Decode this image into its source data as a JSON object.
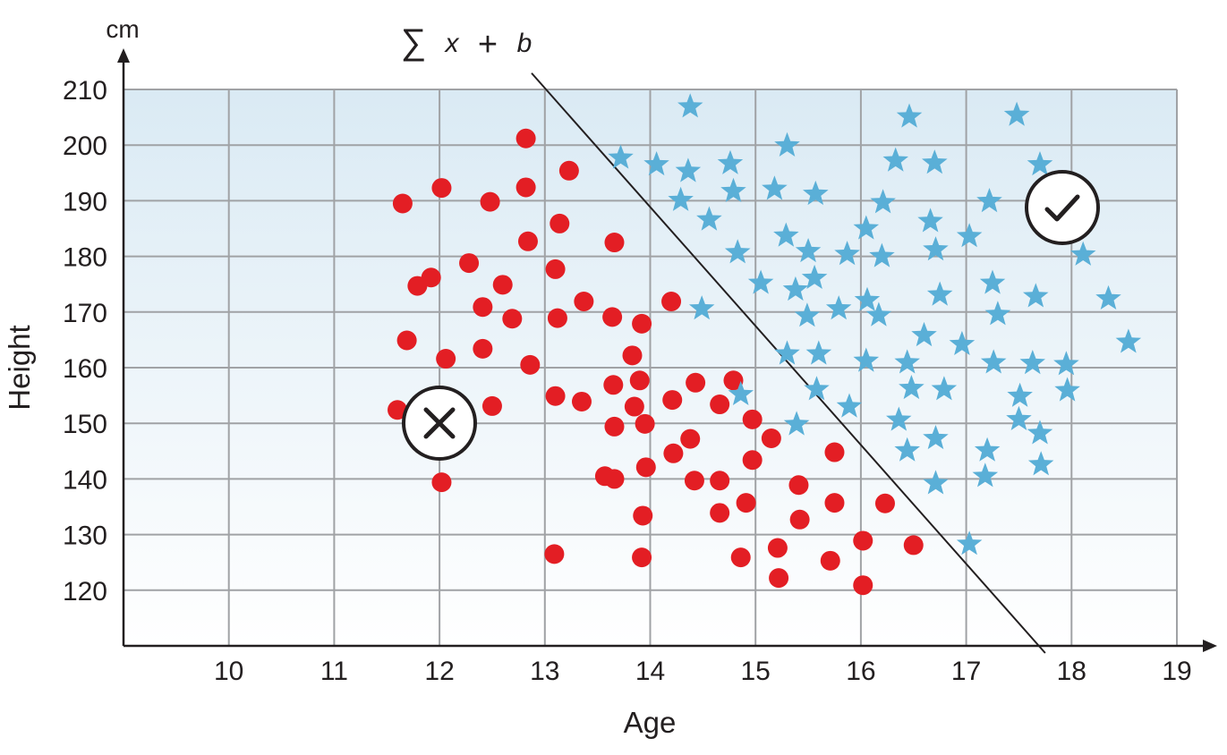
{
  "chart_data": {
    "type": "scatter",
    "title": "",
    "xlabel": "Age",
    "ylabel": "Height",
    "y_unit": "cm",
    "xlim": [
      9,
      19
    ],
    "ylim": [
      110,
      210
    ],
    "x_ticks": [
      10,
      11,
      12,
      13,
      14,
      15,
      16,
      17,
      18,
      19
    ],
    "y_ticks": [
      120,
      130,
      140,
      150,
      160,
      170,
      180,
      190,
      200,
      210
    ],
    "grid": true,
    "boundary_label": {
      "sum": "∑",
      "x": "x",
      "plus": "+",
      "b": "b"
    },
    "boundary_line": [
      [
        13.35,
        206.5
      ],
      [
        17.75,
        110
      ]
    ],
    "class_icons": {
      "negative": "cross-icon",
      "positive": "check-icon"
    },
    "series": [
      {
        "marker": "circle",
        "color": "#e31e24",
        "points": [
          [
            11.65,
            189.5
          ],
          [
            12.02,
            192.3
          ],
          [
            12.48,
            189.8
          ],
          [
            12.82,
            201.2
          ],
          [
            12.82,
            192.4
          ],
          [
            13.23,
            195.4
          ],
          [
            12.28,
            178.8
          ],
          [
            12.84,
            182.7
          ],
          [
            13.14,
            185.9
          ],
          [
            13.66,
            182.5
          ],
          [
            11.79,
            174.7
          ],
          [
            11.92,
            176.2
          ],
          [
            12.41,
            170.9
          ],
          [
            12.6,
            174.9
          ],
          [
            12.69,
            168.8
          ],
          [
            13.1,
            177.7
          ],
          [
            13.12,
            168.9
          ],
          [
            13.37,
            171.9
          ],
          [
            13.64,
            169.1
          ],
          [
            13.92,
            167.9
          ],
          [
            14.2,
            171.9
          ],
          [
            11.69,
            164.9
          ],
          [
            12.06,
            161.6
          ],
          [
            12.41,
            163.4
          ],
          [
            12.86,
            160.5
          ],
          [
            13.83,
            162.2
          ],
          [
            11.6,
            152.4
          ],
          [
            12.5,
            153.1
          ],
          [
            13.1,
            154.9
          ],
          [
            13.35,
            153.9
          ],
          [
            13.65,
            156.9
          ],
          [
            13.9,
            157.7
          ],
          [
            13.85,
            153
          ],
          [
            13.66,
            149.4
          ],
          [
            13.95,
            149.9
          ],
          [
            14.21,
            154.2
          ],
          [
            14.43,
            157.3
          ],
          [
            14.66,
            153.4
          ],
          [
            14.79,
            157.7
          ],
          [
            14.97,
            150.7
          ],
          [
            12.02,
            139.4
          ],
          [
            13.57,
            140.5
          ],
          [
            13.66,
            140
          ],
          [
            13.96,
            142.1
          ],
          [
            14.22,
            144.6
          ],
          [
            14.38,
            147.2
          ],
          [
            14.42,
            139.7
          ],
          [
            14.66,
            139.7
          ],
          [
            14.97,
            143.4
          ],
          [
            15.15,
            147.3
          ],
          [
            15.75,
            144.8
          ],
          [
            13.09,
            126.5
          ],
          [
            13.93,
            133.4
          ],
          [
            13.92,
            125.9
          ],
          [
            14.66,
            133.9
          ],
          [
            14.91,
            135.7
          ],
          [
            14.86,
            125.9
          ],
          [
            15.21,
            127.6
          ],
          [
            15.22,
            122.2
          ],
          [
            15.41,
            138.9
          ],
          [
            15.42,
            132.7
          ],
          [
            15.71,
            125.3
          ],
          [
            15.75,
            135.7
          ],
          [
            16.02,
            128.9
          ],
          [
            16.02,
            120.9
          ],
          [
            16.23,
            135.6
          ],
          [
            16.5,
            128.1
          ]
        ]
      },
      {
        "marker": "star",
        "color": "#5aafd7",
        "points": [
          [
            14.38,
            206.9
          ],
          [
            16.46,
            205.1
          ],
          [
            17.48,
            205.4
          ],
          [
            13.72,
            197.7
          ],
          [
            14.06,
            196.5
          ],
          [
            14.36,
            195.3
          ],
          [
            14.76,
            196.7
          ],
          [
            15.3,
            199.9
          ],
          [
            16.33,
            197.2
          ],
          [
            16.7,
            196.8
          ],
          [
            17.7,
            196.5
          ],
          [
            14.29,
            190.1
          ],
          [
            14.79,
            191.7
          ],
          [
            15.18,
            192.1
          ],
          [
            15.57,
            191.2
          ],
          [
            16.21,
            189.7
          ],
          [
            17.22,
            189.9
          ],
          [
            14.56,
            186.6
          ],
          [
            14.83,
            180.7
          ],
          [
            15.29,
            183.7
          ],
          [
            15.5,
            180.9
          ],
          [
            15.87,
            180.4
          ],
          [
            16.05,
            185
          ],
          [
            16.2,
            180
          ],
          [
            16.66,
            186.3
          ],
          [
            16.71,
            181.2
          ],
          [
            17.03,
            183.6
          ],
          [
            18.11,
            180.3
          ],
          [
            14.49,
            170.6
          ],
          [
            15.05,
            175.2
          ],
          [
            15.38,
            174
          ],
          [
            15.56,
            176.1
          ],
          [
            15.49,
            169.3
          ],
          [
            15.79,
            170.6
          ],
          [
            16.06,
            172.1
          ],
          [
            16.17,
            169.4
          ],
          [
            16.75,
            173.1
          ],
          [
            17.25,
            175.2
          ],
          [
            17.3,
            169.6
          ],
          [
            17.66,
            172.8
          ],
          [
            18.35,
            172.4
          ],
          [
            16.44,
            160.9
          ],
          [
            16.6,
            165.8
          ],
          [
            16.96,
            164.2
          ],
          [
            15.3,
            162.5
          ],
          [
            15.6,
            162.5
          ],
          [
            16.05,
            161.2
          ],
          [
            17.26,
            160.9
          ],
          [
            17.63,
            160.8
          ],
          [
            17.95,
            160.6
          ],
          [
            18.54,
            164.6
          ],
          [
            14.86,
            155.2
          ],
          [
            15.58,
            156.1
          ],
          [
            15.89,
            153
          ],
          [
            15.39,
            149.8
          ],
          [
            16.36,
            150.6
          ],
          [
            16.48,
            156.3
          ],
          [
            16.79,
            156.1
          ],
          [
            17.51,
            154.9
          ],
          [
            17.5,
            150.7
          ],
          [
            17.96,
            155.9
          ],
          [
            16.44,
            145.1
          ],
          [
            16.71,
            147.3
          ],
          [
            17.2,
            145.1
          ],
          [
            17.7,
            148.2
          ],
          [
            16.71,
            139.2
          ],
          [
            17.18,
            140.5
          ],
          [
            17.71,
            142.6
          ],
          [
            17.03,
            128.3
          ]
        ]
      }
    ]
  }
}
